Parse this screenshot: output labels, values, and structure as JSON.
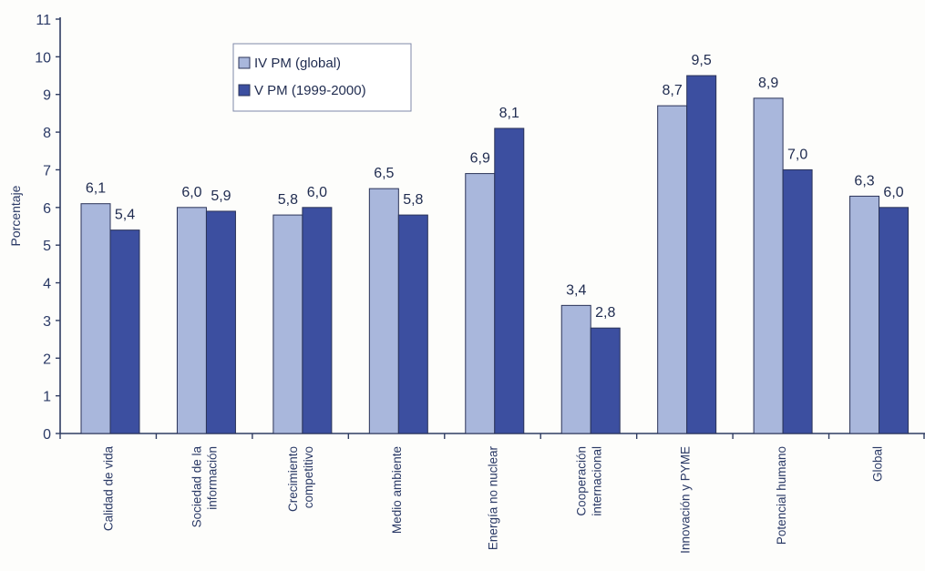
{
  "chart_data": {
    "type": "bar",
    "ylabel": "Porcentaje",
    "xlabel": "",
    "ylim": [
      0,
      11
    ],
    "yticks": [
      0,
      1,
      2,
      3,
      4,
      5,
      6,
      7,
      8,
      9,
      10,
      11
    ],
    "grid": false,
    "legend_position": "top-left",
    "categories": [
      [
        "Calidad de vida"
      ],
      [
        "Sociedad de la",
        "información"
      ],
      [
        "Crecimiento",
        "competitivo"
      ],
      [
        "Medio ambiente"
      ],
      [
        "Energía no nuclear"
      ],
      [
        "Cooperación",
        "internacional"
      ],
      [
        "Innovación y PYME"
      ],
      [
        "Potencial humano"
      ],
      [
        "Global"
      ]
    ],
    "series": [
      {
        "name": "IV PM (global)",
        "color": "#a9b7dc",
        "values": [
          6.1,
          6.0,
          5.8,
          6.5,
          6.9,
          3.4,
          8.7,
          8.9,
          6.3
        ],
        "labels": [
          "6,1",
          "6,0",
          "5,8",
          "6,5",
          "6,9",
          "3,4",
          "8,7",
          "8,9",
          "6,3"
        ]
      },
      {
        "name": "V PM (1999-2000)",
        "color": "#3c4fa0",
        "values": [
          5.4,
          5.9,
          6.0,
          5.8,
          8.1,
          2.8,
          9.5,
          7.0,
          6.0
        ],
        "labels": [
          "5,4",
          "5,9",
          "6,0",
          "5,8",
          "8,1",
          "2,8",
          "9,5",
          "7,0",
          "6,0"
        ]
      }
    ]
  },
  "colors": {
    "axis": "#2f3c62",
    "bar_stroke": "#2a3358"
  }
}
